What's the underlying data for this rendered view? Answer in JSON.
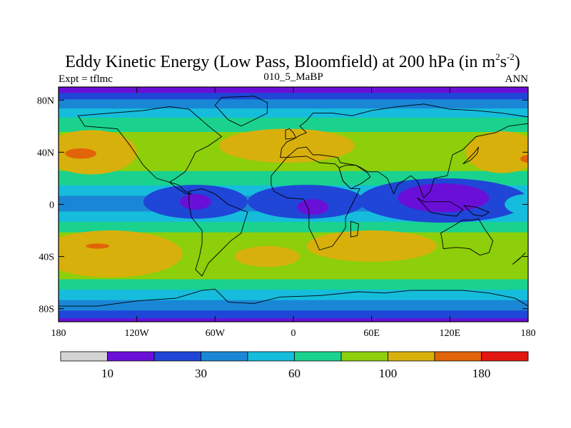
{
  "header": {
    "title_main": "Eddy Kinetic Energy (Low Pass, Bloomfield) at 200 hPa (in m",
    "title_sup1": "2",
    "title_mid": "s",
    "title_sup2": "-2",
    "title_end": ")",
    "left_label": "Expt = tflmc",
    "center_label": "010_5_MaBP",
    "right_label": "ANN"
  },
  "chart_data": {
    "type": "heatmap",
    "lon_range": [
      -180,
      180
    ],
    "lat_range": [
      -90,
      90
    ],
    "x_ticks": [
      {
        "value": -180,
        "label": "180"
      },
      {
        "value": -120,
        "label": "120W"
      },
      {
        "value": -60,
        "label": "60W"
      },
      {
        "value": 0,
        "label": "0"
      },
      {
        "value": 60,
        "label": "60E"
      },
      {
        "value": 120,
        "label": "120E"
      },
      {
        "value": 180,
        "label": "180"
      }
    ],
    "y_ticks": [
      {
        "value": 80,
        "label": "80N"
      },
      {
        "value": 40,
        "label": "40N"
      },
      {
        "value": 0,
        "label": "0"
      },
      {
        "value": -40,
        "label": "40S"
      },
      {
        "value": -80,
        "label": "80S"
      }
    ],
    "colorbar": {
      "colors": [
        "#d3d3d3",
        "#6a0fd8",
        "#1f46d6",
        "#1a87d6",
        "#16bcdc",
        "#1ad28e",
        "#8ccf0a",
        "#d8b00c",
        "#e2640a",
        "#e2170f"
      ],
      "labels": [
        {
          "value": 10,
          "label": "10"
        },
        {
          "value": 30,
          "label": "30"
        },
        {
          "value": 60,
          "label": "60"
        },
        {
          "value": 100,
          "label": "100"
        },
        {
          "value": 180,
          "label": "180"
        }
      ]
    },
    "lat_bands": [
      {
        "lat_min": 85,
        "lat_max": 90,
        "level": 1
      },
      {
        "lat_min": 80,
        "lat_max": 85,
        "level": 2
      },
      {
        "lat_min": 73,
        "lat_max": 80,
        "level": 3
      },
      {
        "lat_min": 66,
        "lat_max": 73,
        "level": 4
      },
      {
        "lat_min": 55,
        "lat_max": 66,
        "level": 5
      },
      {
        "lat_min": 25,
        "lat_max": 55,
        "level": 6
      },
      {
        "lat_min": 14,
        "lat_max": 25,
        "level": 5
      },
      {
        "lat_min": 6,
        "lat_max": 14,
        "level": 4
      },
      {
        "lat_min": -6,
        "lat_max": 6,
        "level": 3
      },
      {
        "lat_min": -14,
        "lat_max": -6,
        "level": 4
      },
      {
        "lat_min": -22,
        "lat_max": -14,
        "level": 5
      },
      {
        "lat_min": -58,
        "lat_max": -22,
        "level": 6
      },
      {
        "lat_min": -66,
        "lat_max": -58,
        "level": 5
      },
      {
        "lat_min": -74,
        "lat_max": -66,
        "level": 4
      },
      {
        "lat_min": -82,
        "lat_max": -74,
        "level": 3
      },
      {
        "lat_min": -88,
        "lat_max": -82,
        "level": 2
      },
      {
        "lat_min": -90,
        "lat_max": -88,
        "level": 1
      }
    ],
    "regions": [
      {
        "level": 7,
        "lon": -155,
        "lat": 40,
        "rlon": 35,
        "rlat": 17
      },
      {
        "level": 7,
        "lon": 160,
        "lat": 40,
        "rlon": 28,
        "rlat": 16
      },
      {
        "level": 7,
        "lon": -5,
        "lat": 45,
        "rlon": 52,
        "rlat": 13
      },
      {
        "level": 7,
        "lon": -140,
        "lat": -38,
        "rlon": 55,
        "rlat": 18
      },
      {
        "level": 7,
        "lon": -20,
        "lat": -40,
        "rlon": 25,
        "rlat": 8
      },
      {
        "level": 7,
        "lon": 60,
        "lat": -32,
        "rlon": 50,
        "rlat": 12
      },
      {
        "level": 8,
        "lon": -163,
        "lat": 39,
        "rlon": 12,
        "rlat": 4
      },
      {
        "level": 8,
        "lon": 180,
        "lat": 35,
        "rlon": 6,
        "rlat": 3
      },
      {
        "level": 8,
        "lon": -150,
        "lat": -32,
        "rlon": 9,
        "rlat": 2
      },
      {
        "level": 2,
        "lon": -75,
        "lat": 2,
        "rlon": 40,
        "rlat": 13
      },
      {
        "level": 2,
        "lon": 10,
        "lat": 2,
        "rlon": 45,
        "rlat": 13
      },
      {
        "level": 2,
        "lon": 115,
        "lat": 3,
        "rlon": 65,
        "rlat": 17
      },
      {
        "level": 1,
        "lon": -75,
        "lat": 2,
        "rlon": 12,
        "rlat": 6
      },
      {
        "level": 1,
        "lon": 15,
        "lat": -2,
        "rlon": 12,
        "rlat": 6
      },
      {
        "level": 1,
        "lon": 115,
        "lat": 5,
        "rlon": 35,
        "rlat": 11
      },
      {
        "level": 4,
        "lon": 180,
        "lat": 0,
        "rlon": 18,
        "rlat": 8
      }
    ],
    "landmasses": [
      {
        "name": "north-america",
        "points": [
          [
            -165,
            68
          ],
          [
            -140,
            70
          ],
          [
            -115,
            72
          ],
          [
            -95,
            75
          ],
          [
            -80,
            73
          ],
          [
            -65,
            60
          ],
          [
            -55,
            52
          ],
          [
            -65,
            45
          ],
          [
            -75,
            40
          ],
          [
            -80,
            30
          ],
          [
            -83,
            25
          ],
          [
            -90,
            20
          ],
          [
            -95,
            17
          ],
          [
            -105,
            20
          ],
          [
            -115,
            30
          ],
          [
            -125,
            45
          ],
          [
            -135,
            58
          ],
          [
            -160,
            60
          ]
        ]
      },
      {
        "name": "central-america",
        "points": [
          [
            -95,
            17
          ],
          [
            -88,
            15
          ],
          [
            -83,
            10
          ],
          [
            -78,
            8
          ],
          [
            -82,
            8
          ],
          [
            -90,
            13
          ]
        ]
      },
      {
        "name": "south-america",
        "points": [
          [
            -80,
            10
          ],
          [
            -70,
            12
          ],
          [
            -60,
            8
          ],
          [
            -50,
            0
          ],
          [
            -35,
            -6
          ],
          [
            -38,
            -15
          ],
          [
            -40,
            -22
          ],
          [
            -48,
            -28
          ],
          [
            -58,
            -38
          ],
          [
            -65,
            -45
          ],
          [
            -70,
            -55
          ],
          [
            -75,
            -50
          ],
          [
            -72,
            -40
          ],
          [
            -70,
            -30
          ],
          [
            -70,
            -20
          ],
          [
            -78,
            -10
          ],
          [
            -80,
            0
          ]
        ]
      },
      {
        "name": "greenland",
        "points": [
          [
            -55,
            82
          ],
          [
            -30,
            83
          ],
          [
            -20,
            78
          ],
          [
            -20,
            70
          ],
          [
            -40,
            60
          ],
          [
            -50,
            65
          ],
          [
            -60,
            76
          ]
        ]
      },
      {
        "name": "eurasia",
        "points": [
          [
            -10,
            36
          ],
          [
            -9,
            43
          ],
          [
            -5,
            48
          ],
          [
            0,
            50
          ],
          [
            5,
            53
          ],
          [
            10,
            55
          ],
          [
            5,
            60
          ],
          [
            10,
            64
          ],
          [
            15,
            70
          ],
          [
            30,
            70
          ],
          [
            45,
            68
          ],
          [
            60,
            72
          ],
          [
            80,
            75
          ],
          [
            100,
            77
          ],
          [
            120,
            73
          ],
          [
            140,
            72
          ],
          [
            160,
            70
          ],
          [
            180,
            67
          ],
          [
            180,
            62
          ],
          [
            165,
            60
          ],
          [
            155,
            55
          ],
          [
            140,
            52
          ],
          [
            130,
            42
          ],
          [
            122,
            38
          ],
          [
            120,
            30
          ],
          [
            118,
            22
          ],
          [
            108,
            20
          ],
          [
            105,
            10
          ],
          [
            100,
            5
          ],
          [
            98,
            10
          ],
          [
            95,
            18
          ],
          [
            90,
            22
          ],
          [
            80,
            15
          ],
          [
            77,
            8
          ],
          [
            72,
            20
          ],
          [
            65,
            25
          ],
          [
            57,
            25
          ],
          [
            52,
            28
          ],
          [
            48,
            30
          ],
          [
            36,
            32
          ],
          [
            34,
            36
          ],
          [
            28,
            37
          ],
          [
            20,
            38
          ],
          [
            15,
            38
          ],
          [
            10,
            44
          ],
          [
            3,
            43
          ],
          [
            -5,
            36
          ]
        ]
      },
      {
        "name": "africa",
        "points": [
          [
            -17,
            15
          ],
          [
            -17,
            22
          ],
          [
            -10,
            30
          ],
          [
            -5,
            36
          ],
          [
            10,
            37
          ],
          [
            20,
            32
          ],
          [
            32,
            31
          ],
          [
            35,
            28
          ],
          [
            38,
            18
          ],
          [
            44,
            12
          ],
          [
            51,
            12
          ],
          [
            45,
            0
          ],
          [
            40,
            -10
          ],
          [
            40,
            -18
          ],
          [
            35,
            -25
          ],
          [
            30,
            -32
          ],
          [
            20,
            -35
          ],
          [
            17,
            -28
          ],
          [
            12,
            -18
          ],
          [
            12,
            -5
          ],
          [
            8,
            4
          ],
          [
            -5,
            5
          ],
          [
            -15,
            10
          ]
        ]
      },
      {
        "name": "arabia",
        "points": [
          [
            35,
            28
          ],
          [
            40,
            30
          ],
          [
            48,
            30
          ],
          [
            57,
            24
          ],
          [
            59,
            21
          ],
          [
            52,
            16
          ],
          [
            44,
            12
          ],
          [
            38,
            18
          ]
        ]
      },
      {
        "name": "madagascar",
        "points": [
          [
            44,
            -13
          ],
          [
            50,
            -15
          ],
          [
            49,
            -24
          ],
          [
            44,
            -25
          ]
        ]
      },
      {
        "name": "australia",
        "points": [
          [
            113,
            -22
          ],
          [
            120,
            -18
          ],
          [
            130,
            -12
          ],
          [
            137,
            -12
          ],
          [
            142,
            -11
          ],
          [
            146,
            -18
          ],
          [
            153,
            -28
          ],
          [
            150,
            -37
          ],
          [
            143,
            -39
          ],
          [
            135,
            -34
          ],
          [
            125,
            -33
          ],
          [
            115,
            -34
          ],
          [
            114,
            -27
          ]
        ]
      },
      {
        "name": "indonesia",
        "points": [
          [
            95,
            5
          ],
          [
            105,
            -6
          ],
          [
            115,
            -8
          ],
          [
            125,
            -9
          ],
          [
            130,
            -4
          ],
          [
            120,
            2
          ],
          [
            110,
            2
          ],
          [
            100,
            2
          ]
        ]
      },
      {
        "name": "new-guinea",
        "points": [
          [
            131,
            -1
          ],
          [
            140,
            -2
          ],
          [
            150,
            -6
          ],
          [
            145,
            -9
          ],
          [
            138,
            -8
          ]
        ]
      },
      {
        "name": "uk",
        "points": [
          [
            -6,
            50
          ],
          [
            2,
            51
          ],
          [
            0,
            55
          ],
          [
            -3,
            58
          ],
          [
            -6,
            57
          ]
        ]
      },
      {
        "name": "japan",
        "points": [
          [
            130,
            31
          ],
          [
            136,
            34
          ],
          [
            141,
            39
          ],
          [
            142,
            44
          ],
          [
            139,
            40
          ],
          [
            133,
            34
          ]
        ]
      },
      {
        "name": "new-zealand",
        "points": [
          [
            168,
            -46
          ],
          [
            175,
            -40
          ],
          [
            178,
            -37
          ],
          [
            173,
            -42
          ]
        ]
      },
      {
        "name": "antarctica",
        "points": [
          [
            -180,
            -78
          ],
          [
            -150,
            -78
          ],
          [
            -120,
            -74
          ],
          [
            -90,
            -72
          ],
          [
            -70,
            -66
          ],
          [
            -60,
            -65
          ],
          [
            -50,
            -75
          ],
          [
            -30,
            -76
          ],
          [
            -10,
            -71
          ],
          [
            20,
            -70
          ],
          [
            50,
            -67
          ],
          [
            70,
            -68
          ],
          [
            90,
            -66
          ],
          [
            110,
            -66
          ],
          [
            130,
            -66
          ],
          [
            150,
            -68
          ],
          [
            170,
            -72
          ],
          [
            180,
            -78
          ],
          [
            180,
            -90
          ],
          [
            -180,
            -90
          ]
        ]
      }
    ]
  }
}
